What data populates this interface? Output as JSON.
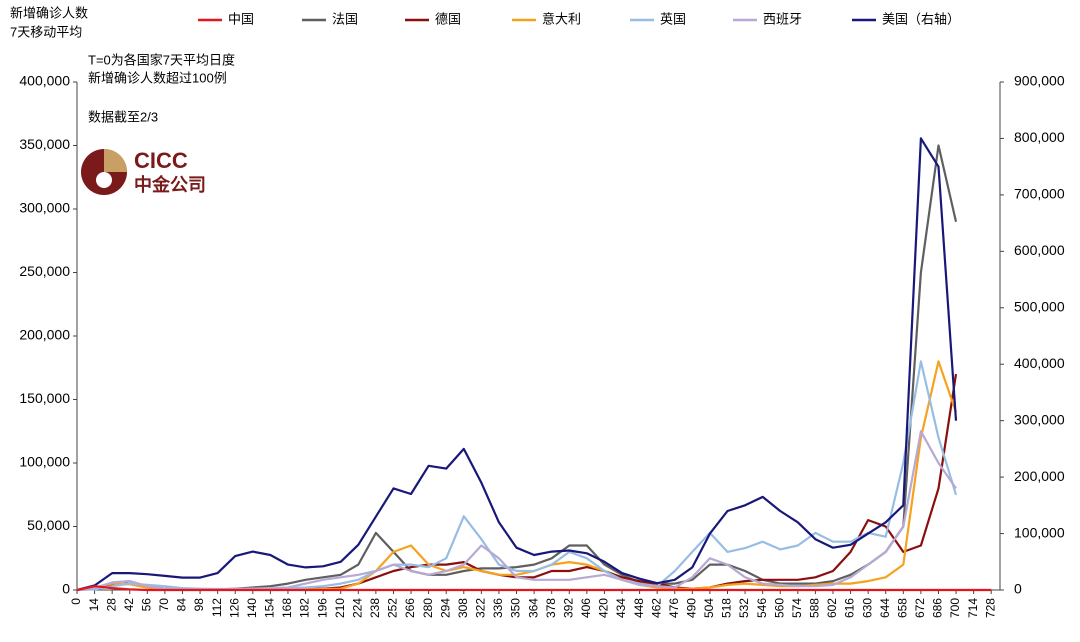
{
  "chart_data": {
    "type": "line",
    "title": "新增确诊人数",
    "subtitle": "7天移动平均",
    "annotations": [
      "T=0为各国家7天平均日度",
      "新增确诊人数超过100例",
      "数据截至2/3"
    ],
    "logo": {
      "en": "CICC",
      "cn": "中金公司"
    },
    "x": [
      0,
      14,
      28,
      42,
      56,
      70,
      84,
      98,
      112,
      126,
      140,
      154,
      168,
      182,
      196,
      210,
      224,
      238,
      252,
      266,
      280,
      294,
      308,
      322,
      336,
      350,
      364,
      378,
      392,
      406,
      420,
      434,
      448,
      462,
      476,
      490,
      504,
      518,
      532,
      546,
      560,
      574,
      588,
      602,
      616,
      630,
      644,
      658,
      672,
      686,
      700,
      714,
      728
    ],
    "series": [
      {
        "name": "中国",
        "color": "#e8141b",
        "values": [
          0,
          3000,
          1500,
          500,
          0,
          0,
          0,
          0,
          0,
          0,
          0,
          0,
          0,
          0,
          0,
          0,
          0,
          0,
          0,
          0,
          0,
          0,
          0,
          0,
          0,
          0,
          0,
          0,
          0,
          0,
          0,
          0,
          0,
          0,
          0,
          0,
          0,
          0,
          0,
          0,
          0,
          0,
          0,
          0,
          0,
          0,
          0,
          0,
          0,
          0,
          0,
          0,
          0
        ]
      },
      {
        "name": "法国",
        "color": "#5f5f5f",
        "values": [
          0,
          1000,
          4000,
          5000,
          2000,
          1000,
          500,
          500,
          500,
          1000,
          2000,
          3000,
          5000,
          8000,
          10000,
          12000,
          20000,
          45000,
          30000,
          15000,
          12000,
          12000,
          15000,
          17000,
          17000,
          18000,
          20000,
          25000,
          35000,
          35000,
          20000,
          12000,
          6000,
          5000,
          5000,
          8000,
          20000,
          20000,
          15000,
          8000,
          5000,
          5000,
          5000,
          7000,
          12000,
          20000,
          30000,
          50000,
          250000,
          350000,
          290000,
          null,
          null
        ]
      },
      {
        "name": "德国",
        "color": "#8b0f0f",
        "values": [
          0,
          1000,
          4000,
          5000,
          3000,
          1000,
          800,
          600,
          500,
          600,
          800,
          1000,
          1000,
          1000,
          1000,
          2000,
          5000,
          10000,
          15000,
          18000,
          20000,
          20000,
          22000,
          15000,
          12000,
          10000,
          10000,
          15000,
          15000,
          18000,
          15000,
          10000,
          7000,
          5000,
          2000,
          1000,
          2000,
          5000,
          7000,
          8000,
          8000,
          8000,
          10000,
          15000,
          30000,
          55000,
          50000,
          30000,
          35000,
          80000,
          170000,
          null,
          null
        ]
      },
      {
        "name": "意大利",
        "color": "#f5a21f",
        "values": [
          0,
          2000,
          5000,
          4500,
          2000,
          1000,
          500,
          300,
          300,
          300,
          300,
          300,
          400,
          500,
          800,
          1000,
          5000,
          15000,
          30000,
          35000,
          20000,
          15000,
          18000,
          15000,
          12000,
          12000,
          15000,
          20000,
          22000,
          20000,
          15000,
          8000,
          4000,
          2000,
          1000,
          1000,
          2000,
          4000,
          5000,
          4000,
          3000,
          3000,
          4000,
          5000,
          5000,
          7000,
          10000,
          20000,
          120000,
          180000,
          140000,
          null,
          null
        ]
      },
      {
        "name": "英国",
        "color": "#97bde3",
        "values": [
          0,
          500,
          3000,
          5000,
          4000,
          3000,
          1500,
          1000,
          800,
          800,
          1000,
          1200,
          1500,
          2000,
          3000,
          5000,
          8000,
          15000,
          20000,
          20000,
          18000,
          25000,
          58000,
          40000,
          20000,
          15000,
          15000,
          20000,
          30000,
          25000,
          15000,
          8000,
          4000,
          3000,
          15000,
          30000,
          45000,
          30000,
          33000,
          38000,
          32000,
          35000,
          45000,
          38000,
          38000,
          45000,
          42000,
          100000,
          180000,
          120000,
          75000,
          null,
          null
        ]
      },
      {
        "name": "西班牙",
        "color": "#b7a8d4",
        "values": [
          0,
          1500,
          6000,
          7000,
          3000,
          1000,
          500,
          500,
          600,
          800,
          1000,
          1500,
          2000,
          5000,
          8000,
          10000,
          12000,
          15000,
          20000,
          15000,
          12000,
          15000,
          20000,
          35000,
          25000,
          10000,
          8000,
          8000,
          8000,
          10000,
          12000,
          8000,
          5000,
          3000,
          2000,
          10000,
          25000,
          20000,
          10000,
          5000,
          4000,
          3000,
          3000,
          4000,
          10000,
          20000,
          30000,
          50000,
          125000,
          100000,
          80000,
          null,
          null
        ]
      },
      {
        "name": "美国（右轴）",
        "color": "#18187a",
        "axis": "y2",
        "values": [
          0,
          8000,
          30000,
          30000,
          28000,
          25000,
          22000,
          22000,
          30000,
          60000,
          68000,
          62000,
          45000,
          40000,
          42000,
          50000,
          80000,
          130000,
          180000,
          170000,
          220000,
          215000,
          250000,
          190000,
          120000,
          75000,
          62000,
          68000,
          70000,
          65000,
          50000,
          30000,
          20000,
          12000,
          18000,
          40000,
          100000,
          140000,
          150000,
          165000,
          140000,
          120000,
          90000,
          75000,
          80000,
          100000,
          120000,
          150000,
          800000,
          750000,
          300000,
          null,
          null
        ]
      }
    ],
    "xlim": [
      0,
      735
    ],
    "xticks": [
      0,
      14,
      28,
      42,
      56,
      70,
      84,
      98,
      112,
      126,
      140,
      154,
      168,
      182,
      196,
      210,
      224,
      238,
      252,
      266,
      280,
      294,
      308,
      322,
      336,
      350,
      364,
      378,
      392,
      406,
      420,
      434,
      448,
      462,
      476,
      490,
      504,
      518,
      532,
      546,
      560,
      574,
      588,
      602,
      616,
      630,
      644,
      658,
      672,
      686,
      700,
      714,
      728
    ],
    "ylim": [
      0,
      400000
    ],
    "yticks": [
      0,
      {
        "value": 50000,
        "label": "50,000"
      },
      {
        "value": 100000,
        "label": "100,000"
      },
      {
        "value": 150000,
        "label": "150,000"
      },
      {
        "value": 200000,
        "label": "200,000"
      },
      {
        "value": 250000,
        "label": "250,000"
      },
      {
        "value": 300000,
        "label": "300,000"
      },
      {
        "value": 350000,
        "label": "350,000"
      },
      {
        "value": 400000,
        "label": "400,000"
      }
    ],
    "y2lim": [
      0,
      900000
    ],
    "y2ticks": [
      0,
      {
        "value": 100000,
        "label": "100,000"
      },
      {
        "value": 200000,
        "label": "200,000"
      },
      {
        "value": 300000,
        "label": "300,000"
      },
      {
        "value": 400000,
        "label": "400,000"
      },
      {
        "value": 500000,
        "label": "500,000"
      },
      {
        "value": 600000,
        "label": "600,000"
      },
      {
        "value": 700000,
        "label": "700,000"
      },
      {
        "value": 800000,
        "label": "800,000"
      },
      {
        "value": 900000,
        "label": "900,000"
      }
    ]
  }
}
